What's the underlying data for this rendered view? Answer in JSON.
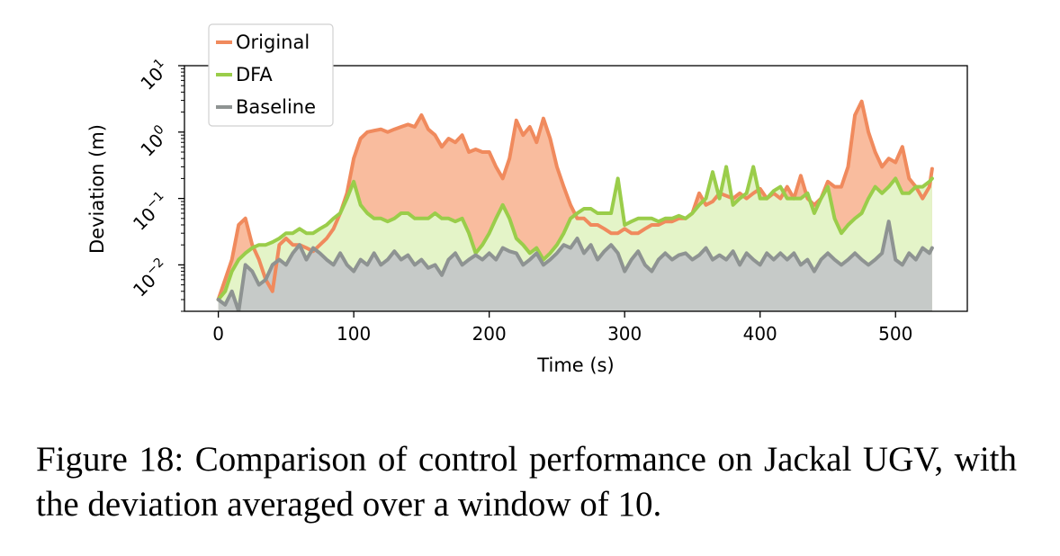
{
  "chart_data": {
    "type": "area",
    "xlabel": "Time (s)",
    "ylabel": "Deviation (m)",
    "xlim": [
      -25,
      553
    ],
    "ylim": [
      0.002,
      10
    ],
    "yscale": "log",
    "xticks": [
      0,
      100,
      200,
      300,
      400,
      500
    ],
    "yticks": [
      {
        "value": 0.01,
        "base": "10",
        "exp": "−2"
      },
      {
        "value": 0.1,
        "base": "10",
        "exp": "−1"
      },
      {
        "value": 1,
        "base": "10",
        "exp": "0"
      },
      {
        "value": 10,
        "base": "10",
        "exp": "1"
      }
    ],
    "legend_placement": "top-left",
    "grid": false,
    "series": [
      {
        "name": "Original",
        "color": "#f08a5d",
        "fill": "#f9bc9e",
        "x": [
          0,
          5,
          10,
          15,
          20,
          25,
          30,
          35,
          40,
          45,
          50,
          55,
          60,
          65,
          70,
          75,
          80,
          85,
          90,
          95,
          100,
          105,
          110,
          115,
          120,
          125,
          130,
          135,
          140,
          145,
          150,
          155,
          160,
          165,
          170,
          175,
          180,
          185,
          190,
          195,
          200,
          205,
          210,
          215,
          220,
          225,
          230,
          235,
          240,
          245,
          250,
          255,
          260,
          265,
          270,
          275,
          280,
          285,
          290,
          295,
          300,
          305,
          310,
          315,
          320,
          325,
          330,
          335,
          340,
          345,
          350,
          355,
          360,
          365,
          370,
          375,
          380,
          385,
          390,
          395,
          400,
          405,
          410,
          415,
          420,
          425,
          430,
          435,
          440,
          445,
          450,
          455,
          460,
          465,
          470,
          475,
          480,
          485,
          490,
          495,
          500,
          505,
          510,
          515,
          520,
          525,
          527
        ],
        "y": [
          0.003,
          0.006,
          0.012,
          0.04,
          0.05,
          0.02,
          0.012,
          0.006,
          0.004,
          0.02,
          0.025,
          0.02,
          0.02,
          0.018,
          0.016,
          0.02,
          0.025,
          0.035,
          0.06,
          0.12,
          0.4,
          0.8,
          1.0,
          1.05,
          1.1,
          1.0,
          1.1,
          1.2,
          1.3,
          1.2,
          1.8,
          1.1,
          0.9,
          0.6,
          0.8,
          0.7,
          0.9,
          0.5,
          0.55,
          0.5,
          0.5,
          0.3,
          0.2,
          0.4,
          1.5,
          0.9,
          1.2,
          0.7,
          1.6,
          0.8,
          0.3,
          0.15,
          0.08,
          0.05,
          0.05,
          0.04,
          0.04,
          0.035,
          0.03,
          0.03,
          0.035,
          0.03,
          0.03,
          0.035,
          0.04,
          0.04,
          0.045,
          0.045,
          0.05,
          0.05,
          0.06,
          0.12,
          0.08,
          0.09,
          0.12,
          0.11,
          0.1,
          0.12,
          0.1,
          0.12,
          0.14,
          0.1,
          0.12,
          0.1,
          0.15,
          0.1,
          0.22,
          0.1,
          0.08,
          0.1,
          0.18,
          0.15,
          0.15,
          0.3,
          1.8,
          2.9,
          1.0,
          0.5,
          0.3,
          0.4,
          0.35,
          0.6,
          0.2,
          0.15,
          0.1,
          0.15,
          0.28
        ]
      },
      {
        "name": "DFA",
        "color": "#9acd4a",
        "fill": "#e4f4c8",
        "x": [
          0,
          5,
          10,
          15,
          20,
          25,
          30,
          35,
          40,
          45,
          50,
          55,
          60,
          65,
          70,
          75,
          80,
          85,
          90,
          95,
          100,
          105,
          110,
          115,
          120,
          125,
          130,
          135,
          140,
          145,
          150,
          155,
          160,
          165,
          170,
          175,
          180,
          185,
          190,
          195,
          200,
          205,
          210,
          215,
          220,
          225,
          230,
          235,
          240,
          245,
          250,
          255,
          260,
          265,
          270,
          275,
          280,
          285,
          290,
          295,
          300,
          305,
          310,
          315,
          320,
          325,
          330,
          335,
          340,
          345,
          350,
          355,
          360,
          365,
          370,
          375,
          380,
          385,
          390,
          395,
          400,
          405,
          410,
          415,
          420,
          425,
          430,
          435,
          440,
          445,
          450,
          455,
          460,
          465,
          470,
          475,
          480,
          485,
          490,
          495,
          500,
          505,
          510,
          515,
          520,
          525,
          527
        ],
        "y": [
          0.003,
          0.004,
          0.008,
          0.012,
          0.015,
          0.018,
          0.02,
          0.02,
          0.022,
          0.025,
          0.03,
          0.03,
          0.035,
          0.03,
          0.03,
          0.035,
          0.04,
          0.05,
          0.06,
          0.1,
          0.18,
          0.08,
          0.06,
          0.05,
          0.05,
          0.045,
          0.05,
          0.06,
          0.06,
          0.05,
          0.05,
          0.05,
          0.06,
          0.05,
          0.05,
          0.045,
          0.05,
          0.03,
          0.015,
          0.02,
          0.03,
          0.05,
          0.08,
          0.05,
          0.025,
          0.02,
          0.015,
          0.018,
          0.012,
          0.015,
          0.02,
          0.03,
          0.05,
          0.06,
          0.07,
          0.07,
          0.06,
          0.06,
          0.06,
          0.2,
          0.04,
          0.045,
          0.05,
          0.05,
          0.05,
          0.045,
          0.05,
          0.05,
          0.055,
          0.05,
          0.06,
          0.08,
          0.1,
          0.25,
          0.1,
          0.3,
          0.08,
          0.1,
          0.12,
          0.3,
          0.1,
          0.1,
          0.13,
          0.15,
          0.1,
          0.1,
          0.1,
          0.12,
          0.06,
          0.1,
          0.15,
          0.05,
          0.03,
          0.04,
          0.05,
          0.06,
          0.1,
          0.15,
          0.12,
          0.15,
          0.2,
          0.12,
          0.12,
          0.15,
          0.15,
          0.18,
          0.2
        ]
      },
      {
        "name": "Baseline",
        "color": "#8e9392",
        "fill": "#c6cac8",
        "x": [
          0,
          5,
          10,
          15,
          20,
          25,
          30,
          35,
          40,
          45,
          50,
          55,
          60,
          65,
          70,
          75,
          80,
          85,
          90,
          95,
          100,
          105,
          110,
          115,
          120,
          125,
          130,
          135,
          140,
          145,
          150,
          155,
          160,
          165,
          170,
          175,
          180,
          185,
          190,
          195,
          200,
          205,
          210,
          215,
          220,
          225,
          230,
          235,
          240,
          245,
          250,
          255,
          260,
          265,
          270,
          275,
          280,
          285,
          290,
          295,
          300,
          305,
          310,
          315,
          320,
          325,
          330,
          335,
          340,
          345,
          350,
          355,
          360,
          365,
          370,
          375,
          380,
          385,
          390,
          395,
          400,
          405,
          410,
          415,
          420,
          425,
          430,
          435,
          440,
          445,
          450,
          455,
          460,
          465,
          470,
          475,
          480,
          485,
          490,
          495,
          500,
          505,
          510,
          515,
          520,
          525,
          527
        ],
        "y": [
          0.003,
          0.0025,
          0.004,
          0.002,
          0.01,
          0.008,
          0.005,
          0.006,
          0.01,
          0.012,
          0.01,
          0.015,
          0.02,
          0.012,
          0.018,
          0.015,
          0.012,
          0.01,
          0.015,
          0.01,
          0.008,
          0.012,
          0.01,
          0.015,
          0.01,
          0.012,
          0.016,
          0.012,
          0.014,
          0.01,
          0.012,
          0.009,
          0.01,
          0.007,
          0.012,
          0.015,
          0.01,
          0.012,
          0.014,
          0.012,
          0.015,
          0.012,
          0.018,
          0.016,
          0.015,
          0.01,
          0.012,
          0.015,
          0.01,
          0.012,
          0.015,
          0.02,
          0.018,
          0.025,
          0.015,
          0.02,
          0.012,
          0.016,
          0.02,
          0.015,
          0.008,
          0.012,
          0.016,
          0.01,
          0.008,
          0.012,
          0.015,
          0.012,
          0.014,
          0.015,
          0.012,
          0.014,
          0.018,
          0.012,
          0.014,
          0.012,
          0.016,
          0.01,
          0.015,
          0.012,
          0.01,
          0.015,
          0.012,
          0.015,
          0.012,
          0.015,
          0.01,
          0.012,
          0.008,
          0.012,
          0.015,
          0.012,
          0.01,
          0.012,
          0.015,
          0.012,
          0.01,
          0.012,
          0.015,
          0.045,
          0.012,
          0.01,
          0.015,
          0.012,
          0.018,
          0.015,
          0.018
        ]
      }
    ]
  },
  "caption": "Figure 18: Comparison of control performance on Jackal UGV, with the deviation averaged over a window of 10."
}
